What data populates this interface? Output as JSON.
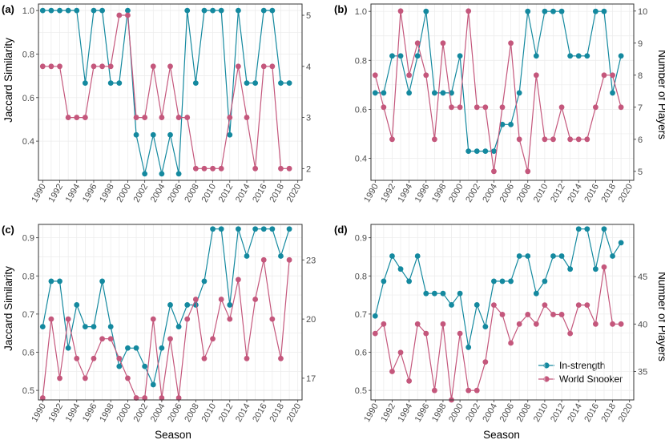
{
  "colors": {
    "in_strength": "#14899f",
    "world_snooker": "#c4577c"
  },
  "legend": {
    "in_strength": "In-strength",
    "world_snooker": "World Snooker"
  },
  "chart_data": [
    {
      "type": "line",
      "tag": "(a)",
      "xlabel": "",
      "ylabel": "Jaccard Similarity",
      "y2label": "",
      "x": [
        1990,
        1991,
        1992,
        1993,
        1994,
        1995,
        1996,
        1997,
        1998,
        1999,
        2000,
        2001,
        2002,
        2003,
        2004,
        2005,
        2006,
        2007,
        2008,
        2009,
        2010,
        2011,
        2012,
        2013,
        2014,
        2015,
        2016,
        2017,
        2018,
        2019
      ],
      "xticks": [
        "1990",
        "1992",
        "1994",
        "1996",
        "1998",
        "2000",
        "2002",
        "2004",
        "2006",
        "2008",
        "2010",
        "2012",
        "2014",
        "2016",
        "2018",
        "2020"
      ],
      "xlim": [
        1989.5,
        2020.5
      ],
      "ylim": [
        0.22,
        1.03
      ],
      "yticks": [
        "0.4",
        "0.6",
        "0.8",
        "1.0"
      ],
      "y2lim": [
        1.77,
        5.22
      ],
      "y2ticks": [
        "2",
        "3",
        "4",
        "5"
      ],
      "series": [
        {
          "name": "In-strength",
          "axis": "left",
          "values": [
            1.0,
            1.0,
            1.0,
            1.0,
            1.0,
            0.667,
            1.0,
            1.0,
            0.667,
            0.667,
            1.0,
            0.429,
            0.25,
            0.429,
            0.25,
            0.429,
            0.25,
            1.0,
            0.667,
            1.0,
            1.0,
            1.0,
            0.429,
            1.0,
            0.667,
            0.667,
            1.0,
            1.0,
            0.667,
            0.667
          ]
        },
        {
          "name": "World Snooker",
          "axis": "right",
          "values": [
            4,
            4,
            4,
            3,
            3,
            3,
            4,
            4,
            4,
            5,
            5,
            3,
            3,
            4,
            3,
            4,
            3,
            3,
            2,
            2,
            2,
            2,
            3,
            4,
            3,
            2,
            4,
            4,
            2,
            2
          ]
        }
      ]
    },
    {
      "type": "line",
      "tag": "(b)",
      "xlabel": "",
      "ylabel": "",
      "y2label": "Number of Players",
      "x": [
        1990,
        1991,
        1992,
        1993,
        1994,
        1995,
        1996,
        1997,
        1998,
        1999,
        2000,
        2001,
        2002,
        2003,
        2004,
        2005,
        2006,
        2007,
        2008,
        2009,
        2010,
        2011,
        2012,
        2013,
        2014,
        2015,
        2016,
        2017,
        2018,
        2019
      ],
      "xticks": [
        "1990",
        "1992",
        "1994",
        "1996",
        "1998",
        "2000",
        "2002",
        "2004",
        "2006",
        "2008",
        "2010",
        "2012",
        "2014",
        "2016",
        "2018",
        "2020"
      ],
      "xlim": [
        1989.5,
        2020.5
      ],
      "ylim": [
        0.31,
        1.03
      ],
      "yticks": [
        "0.4",
        "0.6",
        "0.8",
        "1.0"
      ],
      "y2lim": [
        4.72,
        10.22
      ],
      "y2ticks": [
        "5",
        "6",
        "7",
        "8",
        "9",
        "10"
      ],
      "series": [
        {
          "name": "In-strength",
          "axis": "left",
          "values": [
            0.667,
            0.667,
            0.818,
            0.818,
            0.667,
            0.818,
            1.0,
            0.667,
            0.667,
            0.667,
            0.818,
            0.429,
            0.429,
            0.429,
            0.429,
            0.538,
            0.538,
            0.667,
            1.0,
            0.818,
            1.0,
            1.0,
            1.0,
            0.818,
            0.818,
            0.818,
            1.0,
            1.0,
            0.667,
            0.818
          ]
        },
        {
          "name": "World Snooker",
          "axis": "right",
          "values": [
            8,
            7,
            6,
            10,
            8,
            9,
            8,
            6,
            9,
            7,
            7,
            10,
            7,
            7,
            5,
            7,
            9,
            6,
            5,
            8,
            6,
            6,
            7,
            6,
            6,
            6,
            7,
            8,
            8,
            7
          ]
        }
      ]
    },
    {
      "type": "line",
      "tag": "(c)",
      "xlabel": "Season",
      "ylabel": "Jaccard Similarity",
      "y2label": "",
      "x": [
        1990,
        1991,
        1992,
        1993,
        1994,
        1995,
        1996,
        1997,
        1998,
        1999,
        2000,
        2001,
        2002,
        2003,
        2004,
        2005,
        2006,
        2007,
        2008,
        2009,
        2010,
        2011,
        2012,
        2013,
        2014,
        2015,
        2016,
        2017,
        2018,
        2019
      ],
      "xticks": [
        "1990",
        "1992",
        "1994",
        "1996",
        "1998",
        "2000",
        "2002",
        "2004",
        "2006",
        "2008",
        "2010",
        "2012",
        "2014",
        "2016",
        "2018",
        "2020"
      ],
      "xlim": [
        1989.5,
        2020.5
      ],
      "ylim": [
        0.475,
        0.935
      ],
      "yticks": [
        "0.5",
        "0.6",
        "0.7",
        "0.8",
        "0.9"
      ],
      "y2lim": [
        15.9,
        24.8
      ],
      "y2ticks": [
        "17",
        "20",
        "23"
      ],
      "series": [
        {
          "name": "In-strength",
          "axis": "left",
          "values": [
            0.667,
            0.786,
            0.786,
            0.611,
            0.724,
            0.667,
            0.667,
            0.786,
            0.667,
            0.563,
            0.611,
            0.611,
            0.563,
            0.515,
            0.611,
            0.724,
            0.667,
            0.724,
            0.724,
            0.786,
            0.923,
            0.923,
            0.724,
            0.923,
            0.852,
            0.923,
            0.923,
            0.923,
            0.852,
            0.923
          ]
        },
        {
          "name": "World Snooker",
          "axis": "right",
          "values": [
            16,
            20,
            17,
            20,
            18,
            17,
            18,
            19,
            19,
            18,
            17,
            16,
            16,
            20,
            16,
            19,
            16,
            20,
            21,
            18,
            19,
            21,
            20,
            22,
            18,
            21,
            23,
            20,
            18,
            23
          ]
        }
      ]
    },
    {
      "type": "line",
      "tag": "(d)",
      "xlabel": "Season",
      "ylabel": "",
      "y2label": "Number of Players",
      "x": [
        1990,
        1991,
        1992,
        1993,
        1994,
        1995,
        1996,
        1997,
        1998,
        1999,
        2000,
        2001,
        2002,
        2003,
        2004,
        2005,
        2006,
        2007,
        2008,
        2009,
        2010,
        2011,
        2012,
        2013,
        2014,
        2015,
        2016,
        2017,
        2018,
        2019
      ],
      "xticks": [
        "1990",
        "1992",
        "1994",
        "1996",
        "1998",
        "2000",
        "2002",
        "2004",
        "2006",
        "2008",
        "2010",
        "2012",
        "2014",
        "2016",
        "2018",
        "2020"
      ],
      "xlim": [
        1989.5,
        2020.5
      ],
      "ylim": [
        0.475,
        0.935
      ],
      "yticks": [
        "0.5",
        "0.6",
        "0.7",
        "0.8",
        "0.9"
      ],
      "y2lim": [
        32.0,
        50.5
      ],
      "y2ticks": [
        "35",
        "40",
        "45"
      ],
      "series": [
        {
          "name": "In-strength",
          "axis": "left",
          "values": [
            0.695,
            0.786,
            0.852,
            0.818,
            0.786,
            0.852,
            0.754,
            0.754,
            0.754,
            0.724,
            0.754,
            0.613,
            0.724,
            0.667,
            0.786,
            0.786,
            0.786,
            0.852,
            0.852,
            0.754,
            0.786,
            0.852,
            0.852,
            0.818,
            0.923,
            0.923,
            0.818,
            0.923,
            0.852,
            0.887
          ]
        },
        {
          "name": "World Snooker",
          "axis": "right",
          "values": [
            39,
            40,
            35,
            37,
            34,
            40,
            39,
            33,
            40,
            32,
            39,
            33,
            33,
            36,
            42,
            41,
            38,
            40,
            41,
            40,
            42,
            41,
            41,
            39,
            42,
            42,
            40,
            46,
            40,
            40
          ]
        }
      ]
    }
  ]
}
